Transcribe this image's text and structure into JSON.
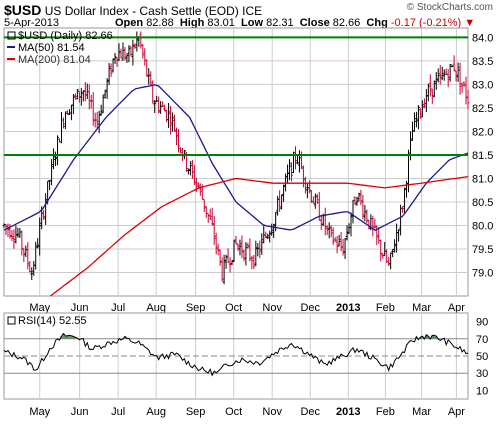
{
  "header": {
    "symbol": "$USD",
    "name": "US Dollar Index - Cash Settle (EOD)",
    "exchange": "ICE",
    "copyright": "© StockCharts.com",
    "date": "5-Apr-2013",
    "open_label": "Open",
    "open": "82.88",
    "high_label": "High",
    "high": "83.01",
    "low_label": "Low",
    "low": "82.31",
    "close_label": "Close",
    "close": "82.66",
    "chg_label": "Chg",
    "chg": "-0.17 (-0.21%)",
    "chg_arrow": "▼"
  },
  "legend": {
    "price": "$USD (Daily) 82.66",
    "ma50": "MA(50) 81.54",
    "ma200": "MA(200) 81.04",
    "rsi": "RSI(14) 52.55"
  },
  "colors": {
    "price_up": "#000000",
    "price_down": "#cc0033",
    "ma50": "#1a1a8c",
    "ma200": "#dd0000",
    "hline": "#008000",
    "grid": "#cccccc",
    "rsi_fill": "#6b8e6b"
  },
  "chart_data": [
    {
      "type": "ohlc",
      "title": "$USD (Daily)",
      "ylim": [
        78.5,
        84.2
      ],
      "y_ticks": [
        "84.0",
        "83.5",
        "83.0",
        "82.5",
        "82.0",
        "81.5",
        "81.0",
        "80.5",
        "80.0",
        "79.5",
        "79.0"
      ],
      "x_ticks": [
        "May",
        "Jun",
        "Jul",
        "Aug",
        "Sep",
        "Oct",
        "Nov",
        "Dec",
        "2013",
        "Feb",
        "Mar",
        "Apr"
      ],
      "horizontal_lines": [
        84.0,
        81.5
      ],
      "price_keypoints": [
        {
          "x": 0.0,
          "y": 80.0
        },
        {
          "x": 0.03,
          "y": 79.8
        },
        {
          "x": 0.06,
          "y": 79.0
        },
        {
          "x": 0.09,
          "y": 80.6
        },
        {
          "x": 0.13,
          "y": 82.4
        },
        {
          "x": 0.17,
          "y": 82.9
        },
        {
          "x": 0.2,
          "y": 82.2
        },
        {
          "x": 0.24,
          "y": 83.7
        },
        {
          "x": 0.27,
          "y": 83.6
        },
        {
          "x": 0.29,
          "y": 84.0
        },
        {
          "x": 0.32,
          "y": 82.7
        },
        {
          "x": 0.36,
          "y": 82.3
        },
        {
          "x": 0.39,
          "y": 81.4
        },
        {
          "x": 0.42,
          "y": 80.8
        },
        {
          "x": 0.45,
          "y": 79.9
        },
        {
          "x": 0.47,
          "y": 79.0
        },
        {
          "x": 0.5,
          "y": 79.6
        },
        {
          "x": 0.54,
          "y": 79.3
        },
        {
          "x": 0.58,
          "y": 80.1
        },
        {
          "x": 0.61,
          "y": 81.0
        },
        {
          "x": 0.63,
          "y": 81.5
        },
        {
          "x": 0.66,
          "y": 80.7
        },
        {
          "x": 0.7,
          "y": 79.8
        },
        {
          "x": 0.73,
          "y": 79.5
        },
        {
          "x": 0.76,
          "y": 80.7
        },
        {
          "x": 0.79,
          "y": 80.0
        },
        {
          "x": 0.83,
          "y": 79.1
        },
        {
          "x": 0.86,
          "y": 80.5
        },
        {
          "x": 0.88,
          "y": 82.0
        },
        {
          "x": 0.91,
          "y": 82.8
        },
        {
          "x": 0.94,
          "y": 83.1
        },
        {
          "x": 0.97,
          "y": 83.4
        },
        {
          "x": 1.0,
          "y": 82.7
        }
      ],
      "ma50_keypoints": [
        {
          "x": 0.0,
          "y": 79.9
        },
        {
          "x": 0.08,
          "y": 80.3
        },
        {
          "x": 0.15,
          "y": 81.4
        },
        {
          "x": 0.22,
          "y": 82.3
        },
        {
          "x": 0.28,
          "y": 82.9
        },
        {
          "x": 0.33,
          "y": 83.0
        },
        {
          "x": 0.4,
          "y": 82.3
        },
        {
          "x": 0.45,
          "y": 81.3
        },
        {
          "x": 0.5,
          "y": 80.5
        },
        {
          "x": 0.56,
          "y": 80.0
        },
        {
          "x": 0.62,
          "y": 79.9
        },
        {
          "x": 0.68,
          "y": 80.2
        },
        {
          "x": 0.74,
          "y": 80.3
        },
        {
          "x": 0.8,
          "y": 79.9
        },
        {
          "x": 0.86,
          "y": 80.2
        },
        {
          "x": 0.91,
          "y": 80.9
        },
        {
          "x": 0.96,
          "y": 81.4
        },
        {
          "x": 1.0,
          "y": 81.54
        }
      ],
      "ma200_keypoints": [
        {
          "x": 0.1,
          "y": 78.5
        },
        {
          "x": 0.18,
          "y": 79.1
        },
        {
          "x": 0.26,
          "y": 79.8
        },
        {
          "x": 0.34,
          "y": 80.4
        },
        {
          "x": 0.42,
          "y": 80.8
        },
        {
          "x": 0.5,
          "y": 81.0
        },
        {
          "x": 0.58,
          "y": 80.9
        },
        {
          "x": 0.66,
          "y": 80.9
        },
        {
          "x": 0.74,
          "y": 80.9
        },
        {
          "x": 0.82,
          "y": 80.8
        },
        {
          "x": 0.9,
          "y": 80.9
        },
        {
          "x": 1.0,
          "y": 81.04
        }
      ]
    },
    {
      "type": "line",
      "title": "RSI(14)",
      "ylim": [
        0,
        100
      ],
      "y_ticks": [
        "90",
        "70",
        "50",
        "30",
        "10"
      ],
      "x_ticks": [
        "May",
        "Jun",
        "Jul",
        "Aug",
        "Sep",
        "Oct",
        "Nov",
        "Dec",
        "2013",
        "Feb",
        "Mar",
        "Apr"
      ],
      "overbought": 70,
      "oversold": 30,
      "midline": 50,
      "rsi_keypoints": [
        {
          "x": 0.0,
          "y": 55
        },
        {
          "x": 0.04,
          "y": 48
        },
        {
          "x": 0.07,
          "y": 34
        },
        {
          "x": 0.1,
          "y": 60
        },
        {
          "x": 0.13,
          "y": 74
        },
        {
          "x": 0.16,
          "y": 72
        },
        {
          "x": 0.19,
          "y": 58
        },
        {
          "x": 0.23,
          "y": 66
        },
        {
          "x": 0.26,
          "y": 70
        },
        {
          "x": 0.29,
          "y": 65
        },
        {
          "x": 0.33,
          "y": 48
        },
        {
          "x": 0.37,
          "y": 52
        },
        {
          "x": 0.4,
          "y": 41
        },
        {
          "x": 0.43,
          "y": 33
        },
        {
          "x": 0.46,
          "y": 30
        },
        {
          "x": 0.48,
          "y": 40
        },
        {
          "x": 0.51,
          "y": 46
        },
        {
          "x": 0.55,
          "y": 42
        },
        {
          "x": 0.59,
          "y": 56
        },
        {
          "x": 0.62,
          "y": 65
        },
        {
          "x": 0.65,
          "y": 55
        },
        {
          "x": 0.69,
          "y": 40
        },
        {
          "x": 0.73,
          "y": 50
        },
        {
          "x": 0.76,
          "y": 58
        },
        {
          "x": 0.8,
          "y": 46
        },
        {
          "x": 0.83,
          "y": 36
        },
        {
          "x": 0.86,
          "y": 54
        },
        {
          "x": 0.88,
          "y": 68
        },
        {
          "x": 0.91,
          "y": 74
        },
        {
          "x": 0.94,
          "y": 70
        },
        {
          "x": 0.97,
          "y": 62
        },
        {
          "x": 1.0,
          "y": 52.55
        }
      ]
    }
  ]
}
